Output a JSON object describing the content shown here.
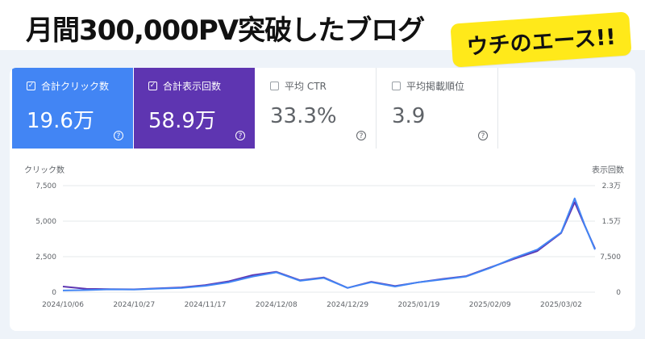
{
  "headline": "月間300,000PV突破したブログ",
  "sticker": "ウチのエース!!",
  "metrics": [
    {
      "label": "合計クリック数",
      "value": "19.6万",
      "checked": true,
      "color": "#4285f4"
    },
    {
      "label": "合計表示回数",
      "value": "58.9万",
      "checked": true,
      "color": "#5e35b1"
    },
    {
      "label": "平均 CTR",
      "value": "33.3%",
      "checked": false
    },
    {
      "label": "平均掲載順位",
      "value": "3.9",
      "checked": false
    }
  ],
  "icons": {
    "checkbox": "checkbox-icon",
    "help": "help-icon"
  },
  "chart_data": {
    "type": "line",
    "ylabel_left": "クリック数",
    "ylabel_right": "表示回数",
    "y_left_ticks": [
      "7,500",
      "5,000",
      "2,500",
      "0"
    ],
    "y_right_ticks": [
      "2.3万",
      "1.5万",
      "7,500",
      "0"
    ],
    "x_ticks": [
      "2024/10/06",
      "2024/10/27",
      "2024/11/17",
      "2024/12/08",
      "2024/12/29",
      "2025/01/19",
      "2025/02/09",
      "2025/03/02"
    ],
    "ylim_left": [
      0,
      7500
    ],
    "ylim_right": [
      0,
      22500
    ],
    "grid": true,
    "x": [
      "2024/10/06",
      "2024/10/13",
      "2024/10/20",
      "2024/10/27",
      "2024/11/03",
      "2024/11/10",
      "2024/11/17",
      "2024/11/24",
      "2024/12/01",
      "2024/12/08",
      "2024/12/15",
      "2024/12/22",
      "2024/12/29",
      "2025/01/05",
      "2025/01/12",
      "2025/01/19",
      "2025/01/26",
      "2025/02/02",
      "2025/02/09",
      "2025/02/16",
      "2025/02/23",
      "2025/03/02",
      "2025/03/06",
      "2025/03/09",
      "2025/03/12"
    ],
    "series": [
      {
        "name": "クリック数",
        "color": "#4285f4",
        "values": [
          120,
          150,
          200,
          180,
          250,
          300,
          450,
          700,
          1100,
          1400,
          800,
          1000,
          300,
          700,
          400,
          700,
          900,
          1100,
          1700,
          2400,
          3000,
          4200,
          6600,
          4700,
          3000
        ]
      },
      {
        "name": "表示回数",
        "color": "#5e35b1",
        "values": [
          1200,
          700,
          650,
          600,
          800,
          1000,
          1500,
          2300,
          3600,
          4300,
          2500,
          3100,
          900,
          2200,
          1300,
          2100,
          2800,
          3400,
          5200,
          7000,
          8700,
          12500,
          19000,
          14000,
          9200
        ]
      }
    ]
  }
}
